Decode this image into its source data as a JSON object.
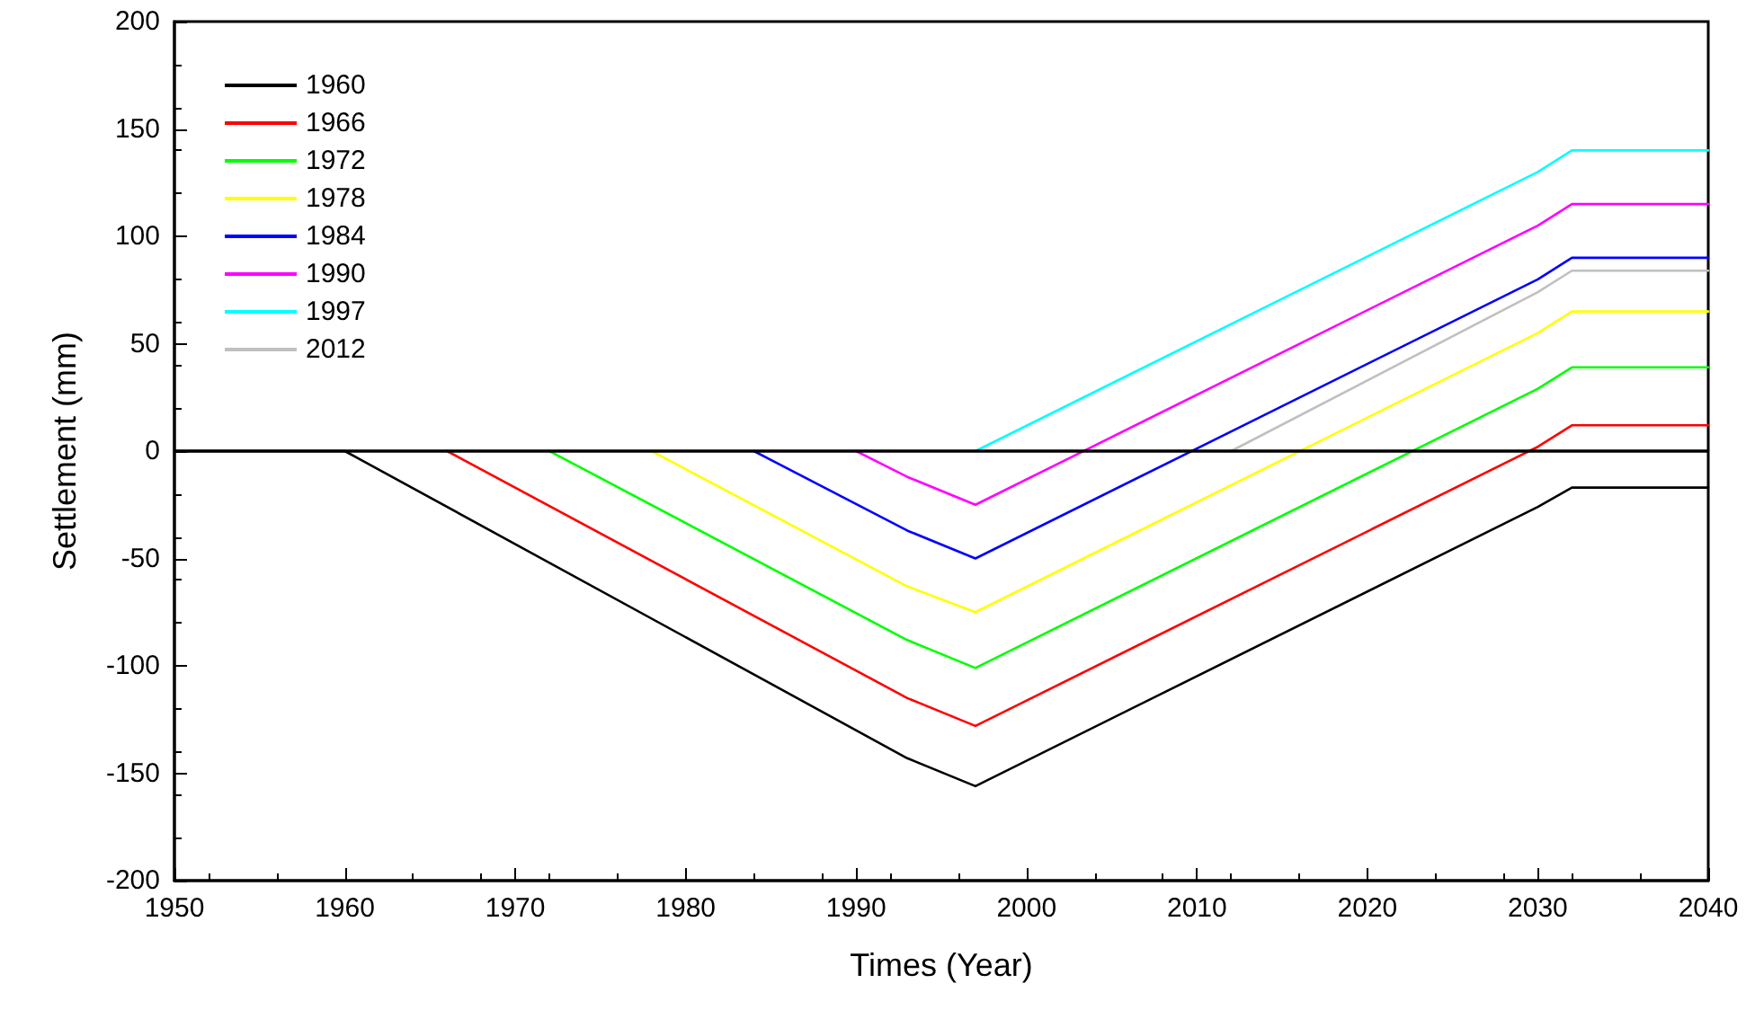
{
  "chart_data": {
    "type": "line",
    "xlabel": "Times (Year)",
    "ylabel": "Settlement (mm)",
    "xlim": [
      1950,
      2040
    ],
    "xticks": [
      1950,
      1960,
      1970,
      1980,
      1990,
      2000,
      2010,
      2020,
      2030,
      2040
    ],
    "ylim": [
      -200,
      200
    ],
    "yticks": [
      -200,
      -150,
      -100,
      -50,
      0,
      50,
      100,
      150,
      200
    ],
    "grid": false,
    "legend": "top left",
    "marker": "none",
    "line_style": "solid",
    "ref_lines": [
      {
        "axis": "y",
        "value": 0,
        "color": "#000000"
      }
    ],
    "series": [
      {
        "name": "1960",
        "color": "#000000",
        "x": [
          1950,
          1960,
          1993,
          1997,
          2030,
          2032,
          2040
        ],
        "values": [
          0,
          0,
          -143,
          -156,
          -26,
          -17,
          -17
        ]
      },
      {
        "name": "1966",
        "color": "#ff0000",
        "x": [
          1966,
          1993,
          1997,
          2030,
          2032,
          2040
        ],
        "values": [
          0,
          -115,
          -128,
          2,
          12,
          12
        ]
      },
      {
        "name": "1972",
        "color": "#00ff00",
        "x": [
          1972,
          1993,
          1997,
          2030,
          2032,
          2040
        ],
        "values": [
          0,
          -88,
          -101,
          29,
          39,
          39
        ]
      },
      {
        "name": "1978",
        "color": "#ffff00",
        "x": [
          1978,
          1993,
          1997,
          2030,
          2032,
          2040
        ],
        "values": [
          0,
          -63,
          -75,
          55,
          65,
          65
        ]
      },
      {
        "name": "1984",
        "color": "#0000ff",
        "x": [
          1984,
          1993,
          1997,
          2030,
          2032,
          2040
        ],
        "values": [
          0,
          -37,
          -50,
          80,
          90,
          90
        ]
      },
      {
        "name": "1990",
        "color": "#ff00ff",
        "x": [
          1990,
          1993,
          1997,
          2030,
          2032,
          2040
        ],
        "values": [
          0,
          -12,
          -25,
          105,
          115,
          115
        ]
      },
      {
        "name": "1997",
        "color": "#00ffff",
        "x": [
          1997,
          2030,
          2032,
          2040
        ],
        "values": [
          0,
          130,
          140,
          140
        ]
      },
      {
        "name": "2012",
        "color": "#c0c0c0",
        "x": [
          2012,
          2030,
          2032,
          2040
        ],
        "values": [
          0,
          74,
          84,
          84
        ]
      }
    ]
  }
}
